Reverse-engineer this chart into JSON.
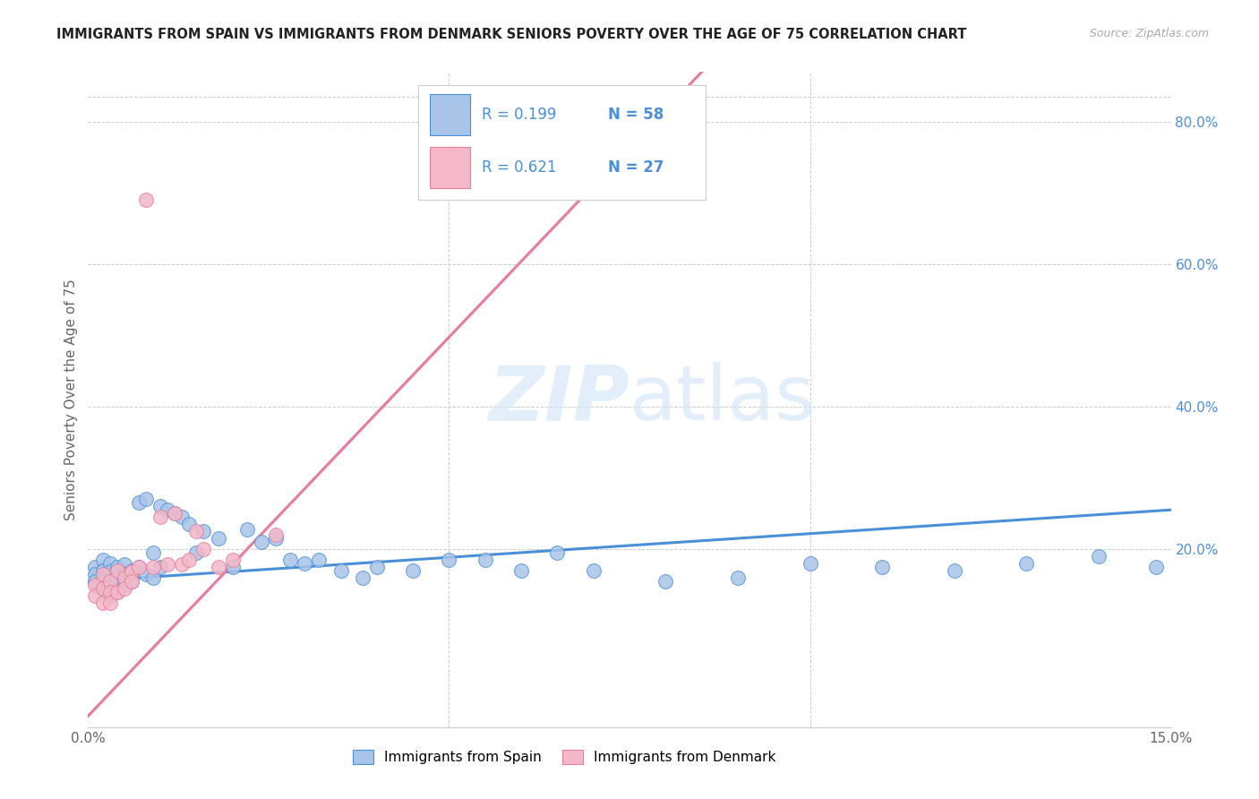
{
  "title": "IMMIGRANTS FROM SPAIN VS IMMIGRANTS FROM DENMARK SENIORS POVERTY OVER THE AGE OF 75 CORRELATION CHART",
  "source": "Source: ZipAtlas.com",
  "ylabel": "Seniors Poverty Over the Age of 75",
  "xlim": [
    0.0,
    0.15
  ],
  "ylim": [
    -0.05,
    0.87
  ],
  "ytick_right_values": [
    0.8,
    0.6,
    0.4,
    0.2
  ],
  "background_color": "#ffffff",
  "grid_color": "#cccccc",
  "watermark": "ZIPatlas",
  "legend_label1": "Immigrants from Spain",
  "legend_label2": "Immigrants from Denmark",
  "color_spain": "#a8c4e8",
  "color_denmark": "#f4b8c8",
  "color_spain_line": "#4a90d9",
  "color_denmark_line": "#e87a9a",
  "right_axis_color": "#4a90d9",
  "source_color": "#aaaaaa",
  "title_color": "#222222",
  "spain_x": [
    0.001,
    0.001,
    0.001,
    0.002,
    0.002,
    0.002,
    0.002,
    0.003,
    0.003,
    0.003,
    0.003,
    0.004,
    0.004,
    0.004,
    0.005,
    0.005,
    0.005,
    0.006,
    0.006,
    0.007,
    0.007,
    0.008,
    0.008,
    0.009,
    0.009,
    0.01,
    0.01,
    0.011,
    0.012,
    0.013,
    0.014,
    0.015,
    0.016,
    0.018,
    0.02,
    0.022,
    0.024,
    0.026,
    0.028,
    0.03,
    0.032,
    0.035,
    0.038,
    0.04,
    0.045,
    0.05,
    0.055,
    0.06,
    0.065,
    0.07,
    0.08,
    0.09,
    0.1,
    0.11,
    0.12,
    0.13,
    0.14,
    0.148
  ],
  "spain_y": [
    0.175,
    0.165,
    0.155,
    0.185,
    0.17,
    0.16,
    0.145,
    0.18,
    0.168,
    0.155,
    0.135,
    0.175,
    0.16,
    0.14,
    0.178,
    0.165,
    0.15,
    0.17,
    0.155,
    0.265,
    0.175,
    0.27,
    0.165,
    0.195,
    0.16,
    0.26,
    0.175,
    0.255,
    0.25,
    0.245,
    0.235,
    0.195,
    0.225,
    0.215,
    0.175,
    0.228,
    0.21,
    0.215,
    0.185,
    0.18,
    0.185,
    0.17,
    0.16,
    0.175,
    0.17,
    0.185,
    0.185,
    0.17,
    0.195,
    0.17,
    0.155,
    0.16,
    0.18,
    0.175,
    0.17,
    0.18,
    0.19,
    0.175
  ],
  "denmark_x": [
    0.001,
    0.001,
    0.002,
    0.002,
    0.002,
    0.003,
    0.003,
    0.003,
    0.004,
    0.004,
    0.005,
    0.005,
    0.006,
    0.006,
    0.007,
    0.008,
    0.009,
    0.01,
    0.011,
    0.012,
    0.013,
    0.014,
    0.015,
    0.016,
    0.018,
    0.02,
    0.026
  ],
  "denmark_y": [
    0.15,
    0.135,
    0.165,
    0.145,
    0.125,
    0.155,
    0.14,
    0.125,
    0.17,
    0.14,
    0.16,
    0.145,
    0.168,
    0.155,
    0.175,
    0.69,
    0.175,
    0.245,
    0.178,
    0.25,
    0.178,
    0.185,
    0.225,
    0.2,
    0.175,
    0.185,
    0.22
  ],
  "spain_line_x": [
    0.0,
    0.15
  ],
  "spain_line_y": [
    0.155,
    0.255
  ],
  "denmark_line_x": [
    -0.001,
    0.085
  ],
  "denmark_line_y": [
    -0.045,
    0.87
  ]
}
